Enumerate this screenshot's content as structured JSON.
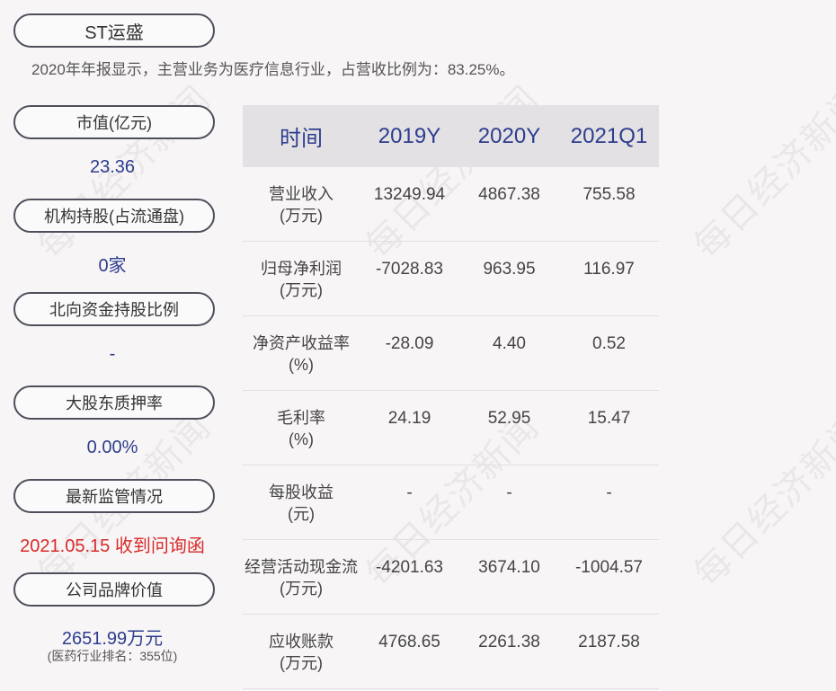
{
  "stock": {
    "name": "ST运盛"
  },
  "summary": "2020年年报显示，主营业务为医疗信息行业，占营收比例为：83.25%。",
  "watermark_text": "每日经济新闻",
  "metrics": [
    {
      "label": "市值(亿元)",
      "value": "23.36"
    },
    {
      "label": "机构持股(占流通盘)",
      "value": "0家"
    },
    {
      "label": "北向资金持股比例",
      "value": "-"
    },
    {
      "label": "大股东质押率",
      "value": "0.00%"
    },
    {
      "label": "最新监管情况",
      "value": "2021.05.15 收到问询函"
    },
    {
      "label": "公司品牌价值",
      "value": "2651.99万元",
      "note": "(医药行业排名：355位)"
    }
  ],
  "colors": {
    "value_blue": "#2d3d8e",
    "alert_red": "#d82a2a",
    "header_bg": "#e3e1e3"
  },
  "table": {
    "headers": [
      "时间",
      "2019Y",
      "2020Y",
      "2021Q1"
    ],
    "rows": [
      {
        "label": [
          "营业收入",
          "(万元)"
        ],
        "values": [
          "13249.94",
          "4867.38",
          "755.58"
        ]
      },
      {
        "label": [
          "归母净利润",
          "(万元)"
        ],
        "values": [
          "-7028.83",
          "963.95",
          "116.97"
        ]
      },
      {
        "label": [
          "净资产收益率",
          "(%)"
        ],
        "values": [
          "-28.09",
          "4.40",
          "0.52"
        ]
      },
      {
        "label": [
          "毛利率",
          "(%)"
        ],
        "values": [
          "24.19",
          "52.95",
          "15.47"
        ]
      },
      {
        "label": [
          "每股收益",
          "(元)"
        ],
        "values": [
          "-",
          "-",
          "-"
        ]
      },
      {
        "label": [
          "经营活动现金流",
          "(万元)"
        ],
        "values": [
          "-4201.63",
          "3674.10",
          "-1004.57"
        ]
      },
      {
        "label": [
          "应收账款",
          "(万元)"
        ],
        "values": [
          "4768.65",
          "2261.38",
          "2187.58"
        ]
      }
    ]
  }
}
